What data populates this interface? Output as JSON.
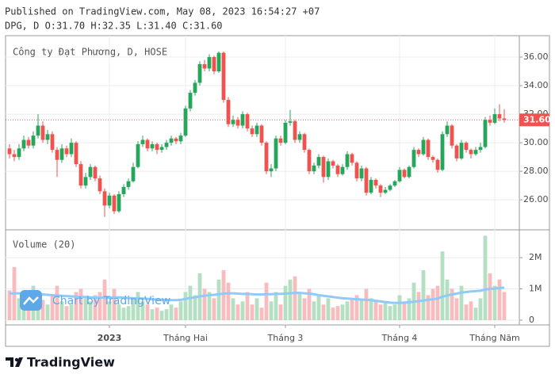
{
  "header": {
    "published": "Published on TradingView.com, May 08, 2023 16:54:27 +07",
    "ohlc_line": "DPG, D O:31.70 H:32.35 L:31.40 C:31.60"
  },
  "footer": {
    "brand": "TradingView"
  },
  "watermark": "Chart by TradingView",
  "chart_data": {
    "type": "candlestick",
    "title": "Công ty Đạt Phương, D, HOSE",
    "up_color": "#26a65b",
    "down_color": "#ef5350",
    "grid": true,
    "categories": [
      null,
      null,
      null,
      null,
      null,
      null,
      null,
      null,
      null,
      null,
      null,
      null,
      null,
      null,
      null,
      null,
      null,
      null,
      null,
      null,
      null,
      "2023",
      null,
      null,
      null,
      null,
      null,
      null,
      null,
      null,
      null,
      null,
      null,
      null,
      null,
      null,
      null,
      "Tháng Hai",
      null,
      null,
      null,
      null,
      null,
      null,
      null,
      null,
      null,
      null,
      null,
      null,
      null,
      null,
      null,
      null,
      null,
      null,
      null,
      null,
      "Tháng 3",
      null,
      null,
      null,
      null,
      null,
      null,
      null,
      null,
      null,
      null,
      null,
      null,
      null,
      null,
      null,
      null,
      null,
      null,
      null,
      null,
      null,
      null,
      null,
      "Tháng 4",
      null,
      null,
      null,
      null,
      null,
      null,
      null,
      null,
      null,
      null,
      null,
      null,
      null,
      null,
      null,
      null,
      null,
      null,
      null,
      "Tháng Năm",
      null,
      null
    ],
    "ohlc": [
      [
        29.6,
        29.9,
        28.9,
        29.2
      ],
      [
        29.2,
        29.5,
        28.7,
        29.0
      ],
      [
        29.0,
        29.9,
        28.8,
        29.6
      ],
      [
        29.6,
        30.5,
        29.4,
        30.2
      ],
      [
        30.2,
        30.4,
        29.6,
        29.8
      ],
      [
        29.8,
        30.8,
        29.6,
        30.5
      ],
      [
        30.5,
        32.0,
        30.3,
        31.2
      ],
      [
        31.2,
        31.5,
        30.0,
        30.2
      ],
      [
        30.2,
        30.9,
        29.9,
        30.6
      ],
      [
        30.6,
        30.8,
        29.3,
        29.5
      ],
      [
        29.5,
        29.7,
        27.6,
        28.8
      ],
      [
        28.8,
        29.9,
        28.6,
        29.6
      ],
      [
        29.6,
        29.8,
        29.0,
        29.2
      ],
      [
        29.2,
        30.3,
        29.0,
        30.0
      ],
      [
        30.0,
        30.1,
        28.3,
        28.5
      ],
      [
        28.5,
        28.7,
        26.8,
        27.0
      ],
      [
        27.0,
        27.9,
        26.8,
        27.6
      ],
      [
        27.6,
        28.5,
        27.4,
        28.3
      ],
      [
        28.3,
        28.4,
        27.3,
        27.5
      ],
      [
        27.5,
        27.7,
        26.4,
        26.6
      ],
      [
        26.6,
        26.8,
        24.8,
        25.6
      ],
      [
        25.6,
        26.5,
        25.4,
        26.3
      ],
      [
        26.3,
        26.4,
        25.0,
        25.2
      ],
      [
        25.2,
        26.6,
        25.1,
        26.4
      ],
      [
        26.4,
        27.1,
        26.2,
        26.9
      ],
      [
        26.9,
        27.5,
        26.7,
        27.3
      ],
      [
        27.3,
        28.6,
        27.2,
        28.3
      ],
      [
        28.3,
        30.1,
        28.2,
        29.9
      ],
      [
        29.9,
        30.5,
        29.7,
        30.2
      ],
      [
        30.2,
        30.3,
        29.4,
        29.6
      ],
      [
        29.6,
        30.1,
        29.4,
        29.9
      ],
      [
        29.9,
        30.0,
        29.2,
        29.5
      ],
      [
        29.5,
        29.9,
        29.3,
        29.7
      ],
      [
        29.7,
        30.2,
        29.5,
        30.0
      ],
      [
        30.0,
        30.5,
        29.8,
        30.3
      ],
      [
        30.3,
        30.4,
        29.9,
        30.1
      ],
      [
        30.1,
        30.7,
        29.9,
        30.5
      ],
      [
        30.5,
        32.6,
        30.4,
        32.4
      ],
      [
        32.4,
        33.7,
        32.2,
        33.5
      ],
      [
        33.5,
        34.4,
        33.3,
        34.2
      ],
      [
        34.2,
        35.7,
        34.0,
        35.5
      ],
      [
        35.5,
        35.8,
        35.0,
        35.2
      ],
      [
        35.2,
        36.2,
        35.0,
        36.0
      ],
      [
        36.0,
        36.1,
        34.8,
        35.0
      ],
      [
        35.0,
        36.4,
        34.9,
        36.3
      ],
      [
        36.3,
        36.4,
        32.8,
        33.0
      ],
      [
        33.0,
        33.2,
        31.1,
        31.3
      ],
      [
        31.3,
        31.9,
        31.1,
        31.6
      ],
      [
        31.6,
        31.8,
        31.0,
        31.2
      ],
      [
        31.2,
        32.2,
        31.0,
        32.0
      ],
      [
        32.0,
        32.1,
        30.8,
        31.0
      ],
      [
        31.0,
        31.2,
        30.4,
        30.6
      ],
      [
        30.6,
        31.4,
        30.4,
        31.2
      ],
      [
        31.2,
        31.3,
        29.8,
        30.0
      ],
      [
        30.0,
        30.1,
        27.8,
        28.0
      ],
      [
        28.0,
        28.5,
        27.6,
        28.2
      ],
      [
        28.2,
        30.5,
        28.0,
        30.3
      ],
      [
        30.3,
        30.5,
        29.8,
        30.0
      ],
      [
        30.0,
        31.6,
        29.9,
        31.4
      ],
      [
        31.4,
        32.3,
        31.2,
        31.5
      ],
      [
        31.5,
        31.6,
        30.0,
        30.2
      ],
      [
        30.2,
        30.8,
        30.0,
        30.6
      ],
      [
        30.6,
        30.7,
        29.3,
        29.5
      ],
      [
        29.5,
        29.6,
        27.8,
        28.0
      ],
      [
        28.0,
        28.6,
        27.8,
        28.4
      ],
      [
        28.4,
        29.2,
        28.2,
        29.0
      ],
      [
        29.0,
        29.1,
        27.2,
        27.6
      ],
      [
        27.6,
        28.9,
        27.4,
        28.7
      ],
      [
        28.7,
        28.8,
        28.2,
        28.4
      ],
      [
        28.4,
        28.5,
        27.6,
        27.8
      ],
      [
        27.8,
        28.5,
        27.7,
        28.3
      ],
      [
        28.3,
        29.4,
        28.1,
        29.2
      ],
      [
        29.2,
        29.3,
        28.4,
        28.6
      ],
      [
        28.6,
        28.7,
        27.3,
        27.5
      ],
      [
        27.5,
        28.4,
        27.3,
        28.2
      ],
      [
        28.2,
        28.3,
        26.3,
        26.5
      ],
      [
        26.5,
        27.6,
        26.4,
        27.4
      ],
      [
        27.4,
        27.5,
        26.8,
        27.0
      ],
      [
        27.0,
        27.1,
        26.2,
        26.5
      ],
      [
        26.5,
        26.9,
        26.4,
        26.7
      ],
      [
        26.7,
        27.1,
        26.6,
        27.0
      ],
      [
        27.0,
        27.4,
        26.9,
        27.3
      ],
      [
        27.3,
        28.3,
        27.2,
        28.1
      ],
      [
        28.1,
        28.2,
        27.5,
        27.6
      ],
      [
        27.6,
        28.4,
        27.5,
        28.3
      ],
      [
        28.3,
        29.7,
        28.2,
        29.5
      ],
      [
        29.5,
        29.6,
        29.0,
        29.2
      ],
      [
        29.2,
        30.4,
        29.1,
        30.2
      ],
      [
        30.2,
        30.3,
        28.8,
        29.0
      ],
      [
        29.0,
        29.1,
        28.6,
        28.8
      ],
      [
        28.8,
        28.9,
        27.9,
        28.1
      ],
      [
        28.1,
        30.8,
        28.0,
        30.6
      ],
      [
        30.6,
        31.5,
        30.4,
        31.2
      ],
      [
        31.2,
        31.3,
        29.6,
        29.8
      ],
      [
        29.8,
        29.9,
        28.7,
        28.9
      ],
      [
        28.9,
        30.2,
        28.8,
        30.0
      ],
      [
        30.0,
        30.1,
        29.3,
        29.5
      ],
      [
        29.5,
        29.6,
        28.9,
        29.2
      ],
      [
        29.2,
        29.7,
        29.1,
        29.5
      ],
      [
        29.5,
        30.0,
        29.3,
        29.7
      ],
      [
        29.7,
        31.8,
        29.6,
        31.6
      ],
      [
        31.6,
        31.9,
        31.2,
        31.4
      ],
      [
        31.4,
        32.4,
        31.3,
        32.0
      ],
      [
        32.0,
        32.7,
        31.5,
        31.7
      ],
      [
        31.7,
        32.35,
        31.4,
        31.6
      ]
    ],
    "ylim": [
      23.9,
      37.5
    ],
    "yticks": [
      {
        "value": 26,
        "label": "26.00"
      },
      {
        "value": 28,
        "label": "28.00"
      },
      {
        "value": 30,
        "label": "30.00"
      },
      {
        "value": 32,
        "label": "32.00"
      },
      {
        "value": 34,
        "label": "34.00"
      },
      {
        "value": 36,
        "label": "36.00"
      }
    ],
    "last_price_label": "31.60",
    "volume": {
      "label": "Volume (20)",
      "up_color": "#b5dfc2",
      "down_color": "#f7bcbf",
      "ma_color": "#90caf9",
      "values": [
        950000,
        1700000,
        700000,
        600000,
        500000,
        1100000,
        900000,
        650000,
        500000,
        800000,
        1100000,
        600000,
        450000,
        500000,
        900000,
        1000000,
        700000,
        600000,
        800000,
        900000,
        1300000,
        600000,
        1000000,
        500000,
        400000,
        450000,
        700000,
        900000,
        600000,
        500000,
        350000,
        400000,
        300000,
        350000,
        500000,
        400000,
        600000,
        900000,
        1100000,
        800000,
        1500000,
        1000000,
        900000,
        700000,
        1300000,
        1600000,
        1200000,
        700000,
        500000,
        600000,
        900000,
        500000,
        700000,
        400000,
        1200000,
        600000,
        900000,
        500000,
        1100000,
        1300000,
        1400000,
        900000,
        700000,
        1000000,
        600000,
        800000,
        500000,
        700000,
        400000,
        450000,
        500000,
        600000,
        700000,
        800000,
        650000,
        1000000,
        700000,
        600000,
        500000,
        600000,
        450000,
        500000,
        800000,
        600000,
        700000,
        1200000,
        900000,
        1600000,
        800000,
        1000000,
        1100000,
        2200000,
        1300000,
        1000000,
        700000,
        1100000,
        500000,
        600000,
        400000,
        700000,
        2700000,
        1500000,
        1100000,
        1300000,
        900000
      ],
      "ma": [
        850000,
        860000,
        860000,
        850000,
        840000,
        840000,
        830000,
        820000,
        810000,
        800000,
        790000,
        780000,
        770000,
        760000,
        750000,
        740000,
        740000,
        730000,
        720000,
        720000,
        720000,
        720000,
        730000,
        730000,
        720000,
        710000,
        700000,
        700000,
        690000,
        680000,
        670000,
        660000,
        650000,
        650000,
        640000,
        640000,
        650000,
        680000,
        710000,
        730000,
        760000,
        780000,
        800000,
        810000,
        830000,
        850000,
        860000,
        860000,
        850000,
        840000,
        840000,
        830000,
        820000,
        820000,
        830000,
        830000,
        840000,
        840000,
        850000,
        860000,
        870000,
        870000,
        860000,
        850000,
        830000,
        800000,
        780000,
        760000,
        740000,
        720000,
        700000,
        690000,
        680000,
        670000,
        660000,
        650000,
        640000,
        620000,
        600000,
        580000,
        560000,
        550000,
        550000,
        560000,
        570000,
        590000,
        610000,
        630000,
        650000,
        670000,
        690000,
        750000,
        790000,
        820000,
        850000,
        880000,
        900000,
        920000,
        930000,
        940000,
        980000,
        1000000,
        1010000,
        1030000,
        1040000
      ],
      "ylim": [
        0,
        2890000
      ],
      "yticks": [
        {
          "value": 0,
          "label": "0"
        },
        {
          "value": 1000000,
          "label": "1M"
        },
        {
          "value": 2000000,
          "label": "2M"
        }
      ]
    }
  }
}
